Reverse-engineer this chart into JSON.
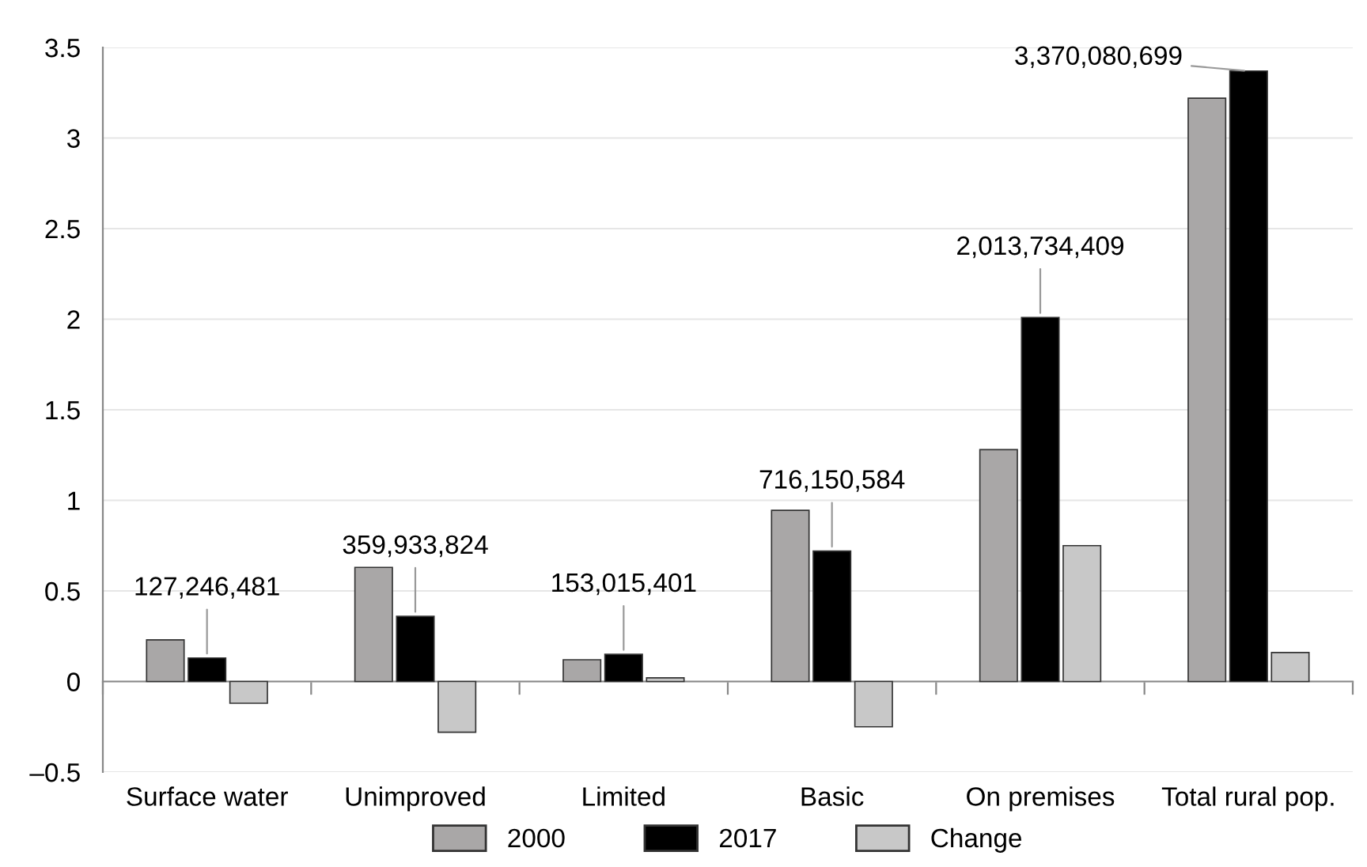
{
  "chart_data": {
    "type": "bar",
    "categories": [
      "Surface water",
      "Unimproved",
      "Limited",
      "Basic",
      "On premises",
      "Total rural pop."
    ],
    "series": [
      {
        "name": "2000",
        "color": "#a9a7a7",
        "values": [
          0.23,
          0.63,
          0.12,
          0.945,
          1.28,
          3.22
        ]
      },
      {
        "name": "2017",
        "color": "#000000",
        "values": [
          0.13,
          0.36,
          0.15,
          0.72,
          2.01,
          3.37
        ]
      },
      {
        "name": "Change",
        "color": "#c8c8c8",
        "values": [
          -0.12,
          -0.28,
          0.02,
          -0.25,
          0.75,
          0.16
        ]
      }
    ],
    "annotations": [
      {
        "text": "127,246,481",
        "x": "Surface water",
        "y": 0.13
      },
      {
        "text": "359,933,824",
        "x": "Unimproved",
        "y": 0.36
      },
      {
        "text": "153,015,401",
        "x": "Limited",
        "y": 0.15
      },
      {
        "text": "716,150,584",
        "x": "Basic",
        "y": 0.72
      },
      {
        "text": "2,013,734,409",
        "x": "On premises",
        "y": 2.01
      },
      {
        "text": "3,370,080,699",
        "x": "Total rural pop.",
        "y": 3.37
      }
    ],
    "ylim": [
      -0.5,
      3.5
    ],
    "yticks": [
      {
        "value": -0.5,
        "label": "–0.5"
      },
      0,
      0.5,
      1,
      1.5,
      2,
      2.5,
      3,
      3.5
    ],
    "grid": "y",
    "legend": "bottom"
  }
}
